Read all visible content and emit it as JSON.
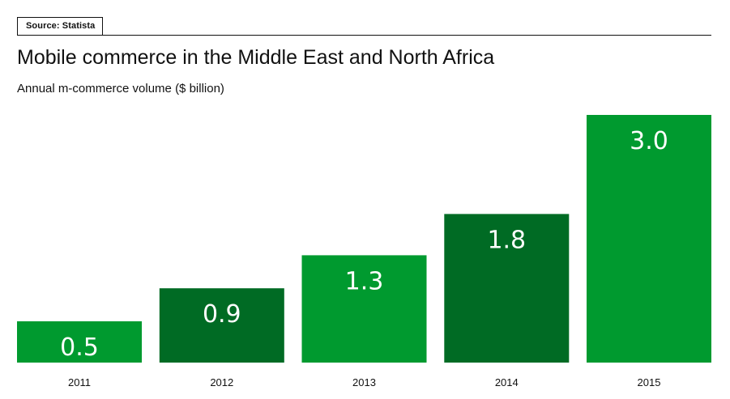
{
  "source": "Source: Statista",
  "chart_data": {
    "type": "bar",
    "title": "Mobile commerce in the Middle East and North Africa",
    "subtitle": "Annual m-commerce volume ($ billion)",
    "categories": [
      "2011",
      "2012",
      "2013",
      "2014",
      "2015"
    ],
    "values": [
      0.5,
      0.9,
      1.3,
      1.8,
      3.0
    ],
    "value_labels": [
      "0.5",
      "0.9",
      "1.3",
      "1.8",
      "3.0"
    ],
    "ylim": [
      0,
      3.0
    ],
    "grid": false,
    "xlabel": "",
    "ylabel": "",
    "colors": [
      "#009a2f",
      "#006b24",
      "#009a2f",
      "#006b24",
      "#009a2f"
    ]
  }
}
